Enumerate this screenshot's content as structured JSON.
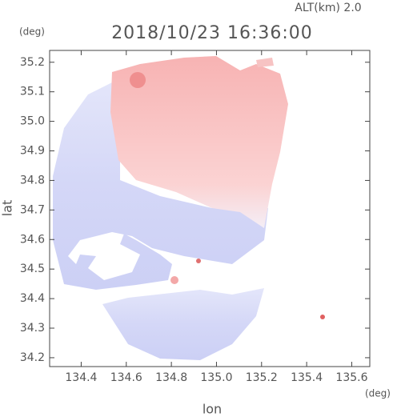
{
  "chart_data": {
    "type": "map",
    "title": "2018/10/23 16:36:00",
    "subtitle": "ALT(km) 2.0",
    "y_unit": "(deg)",
    "x_unit": "(deg)",
    "x_label": "lon",
    "y_label": "lat",
    "xlim": [
      134.26,
      135.68
    ],
    "ylim": [
      34.17,
      35.24
    ],
    "xticks": [
      134.4,
      134.6,
      134.8,
      {
        "value": 135,
        "label": "135.0"
      },
      135.2,
      135.4,
      135.6
    ],
    "yticks": [
      34.2,
      34.3,
      34.4,
      34.5,
      34.6,
      34.7,
      34.8,
      34.9,
      {
        "value": 35,
        "label": "35.0"
      },
      35.1,
      35.2
    ]
  }
}
